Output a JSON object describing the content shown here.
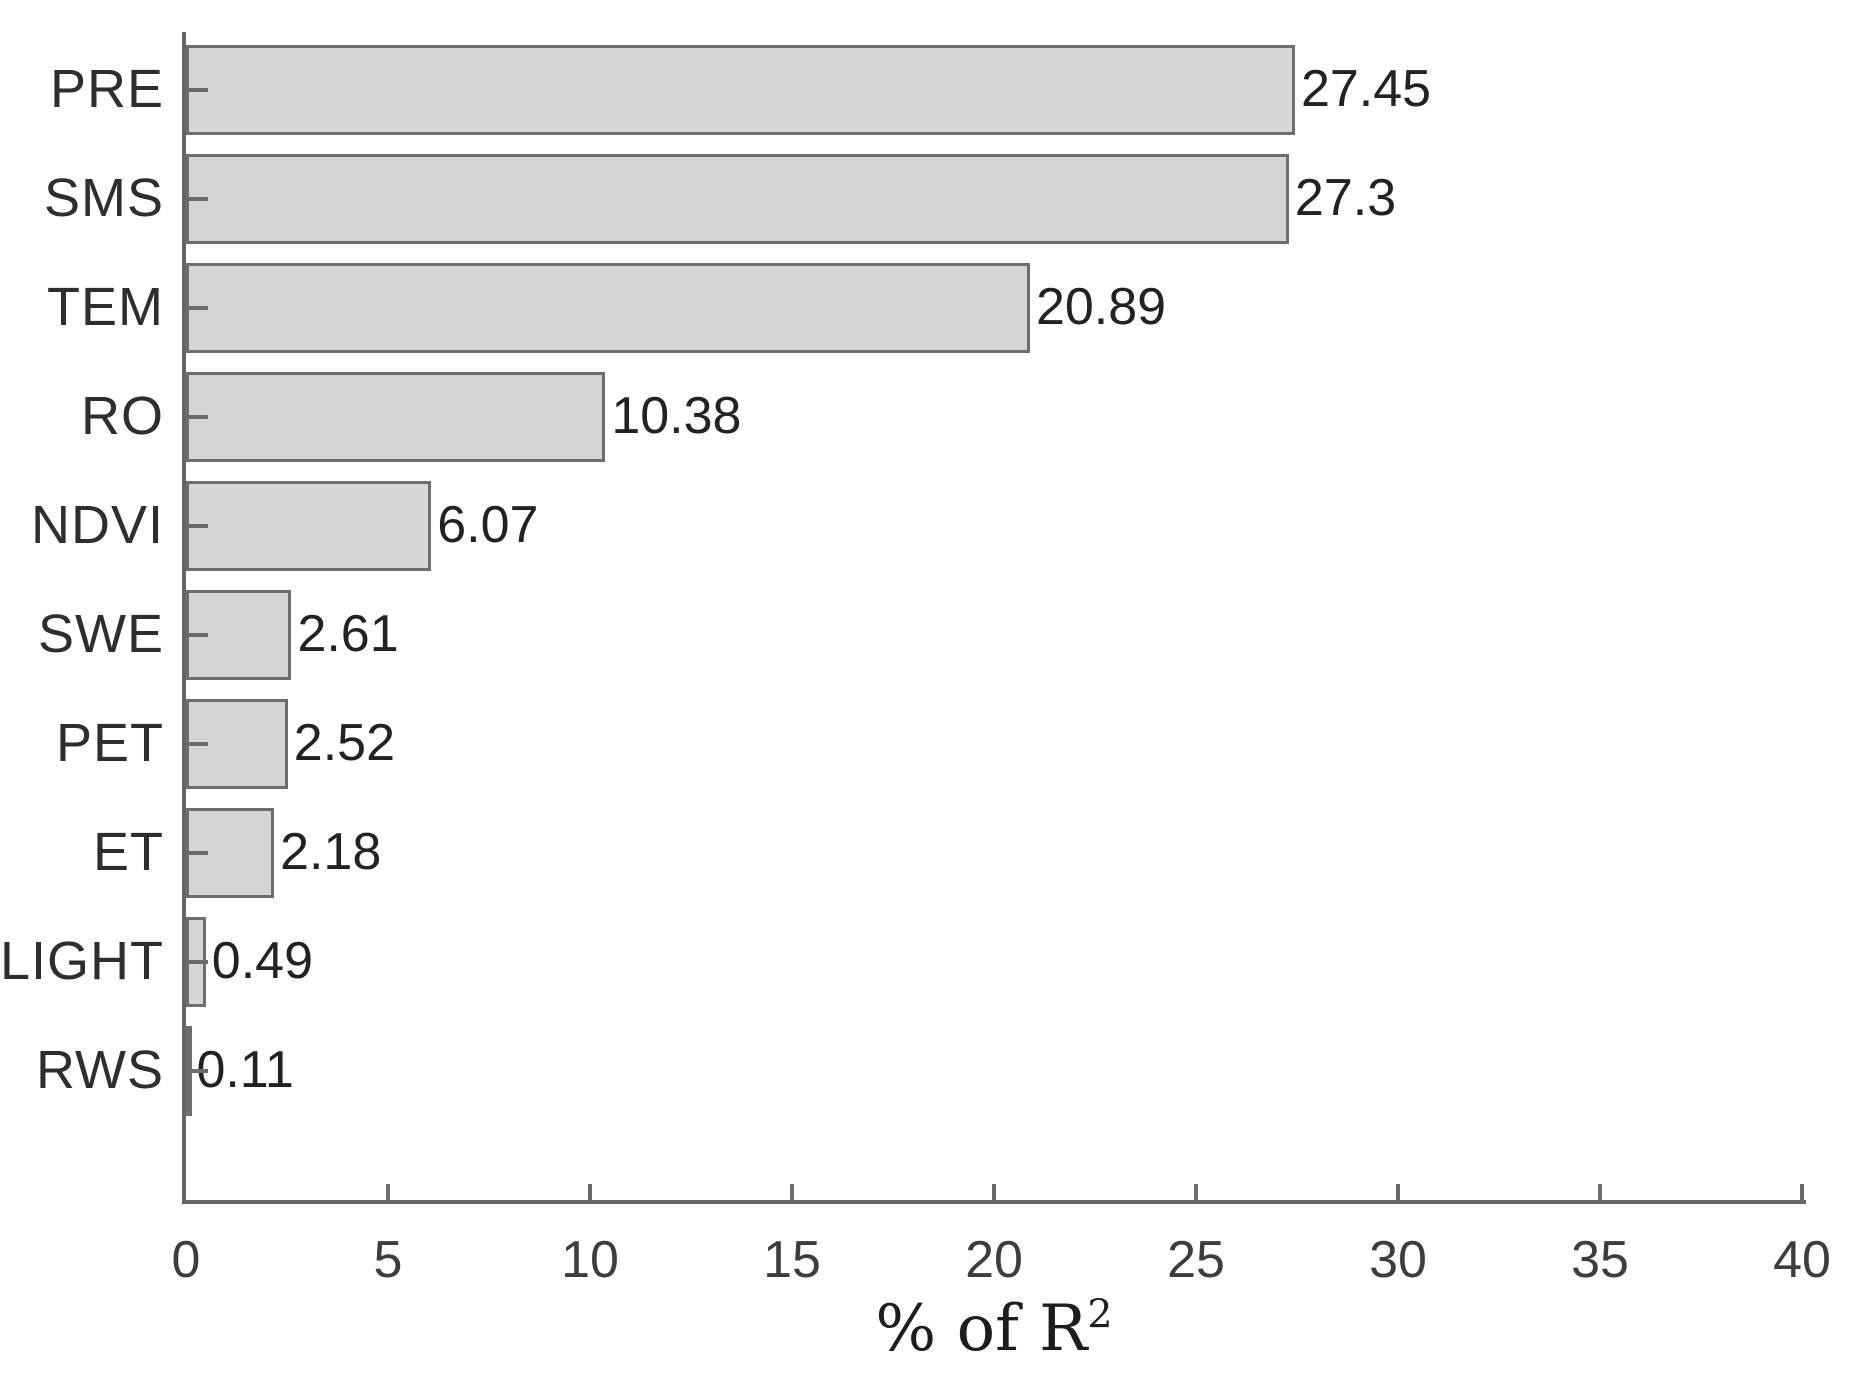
{
  "chart_data": {
    "type": "bar",
    "orientation": "horizontal",
    "title": "",
    "xlabel": "% of R²",
    "ylabel": "",
    "categories": [
      "PRE",
      "SMS",
      "TEM",
      "RO",
      "NDVI",
      "SWE",
      "PET",
      "ET",
      "LIGHT",
      "RWS"
    ],
    "values": [
      27.45,
      27.3,
      20.89,
      10.38,
      6.07,
      2.61,
      2.52,
      2.18,
      0.49,
      0.11
    ],
    "value_labels": [
      "27.45",
      "27.3",
      "20.89",
      "10.38",
      "6.07",
      "2.61",
      "2.52",
      "2.18",
      "0.49",
      "0.11"
    ],
    "xticks": [
      0,
      5,
      10,
      15,
      20,
      25,
      30,
      35,
      40
    ],
    "xtick_labels": [
      "0",
      "5",
      "10",
      "15",
      "20",
      "25",
      "30",
      "35",
      "40"
    ],
    "xlim": [
      0,
      40
    ],
    "grid": false,
    "legend": null,
    "colors": {
      "bar_fill": "#d5d5d5",
      "bar_border": "#6e6e6e",
      "axis": "#666666",
      "text": "#2e2e2e"
    }
  }
}
